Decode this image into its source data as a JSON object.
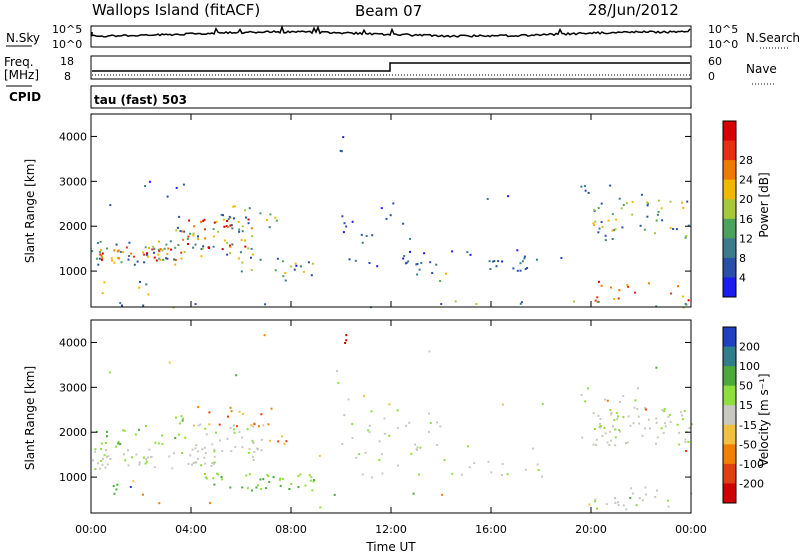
{
  "header": {
    "station": "Wallops Island (fitACF)",
    "beam": "Beam 07",
    "date": "28/Jun/2012"
  },
  "top_panels": {
    "nsky_label": "N.Sky",
    "nsky_ticks": [
      "10^5",
      "10^0"
    ],
    "nsearch_label": "N.Search",
    "nsearch_ticks": [
      "10^5",
      "10^0"
    ],
    "freq_label_1": "Freq.",
    "freq_label_2": "[MHz]",
    "freq_ticks": [
      "18",
      "8"
    ],
    "nave_label": "Nave",
    "nave_ticks": [
      "60",
      "0"
    ],
    "cpid_label": "CPID",
    "cpid_value": "tau (fast) 503"
  },
  "chart_data": [
    {
      "type": "heatmap",
      "name": "power",
      "ylabel": "Slant Range [km]",
      "y_ticks": [
        "1000",
        "2000",
        "3000",
        "4000"
      ],
      "ylim": [
        200,
        4500
      ],
      "xlim_hours": [
        0,
        24
      ],
      "colorbar": {
        "label": "Power [dB]",
        "ticks": [
          "4",
          "8",
          "12",
          "16",
          "20",
          "24",
          "28"
        ],
        "colors": [
          "#1c1cf0",
          "#2a4fa8",
          "#3c7c8a",
          "#4aa35c",
          "#a8c83c",
          "#f0b800",
          "#f07a00",
          "#e83010",
          "#d80000"
        ]
      }
    },
    {
      "type": "heatmap",
      "name": "velocity",
      "ylabel": "Slant Range [km]",
      "y_ticks": [
        "1000",
        "2000",
        "3000",
        "4000"
      ],
      "ylim": [
        200,
        4500
      ],
      "xlim_hours": [
        0,
        24
      ],
      "colorbar": {
        "label": "Velocity [m s⁻¹]",
        "ticks": [
          "200",
          "100",
          "50",
          "15",
          "-15",
          "-50",
          "-100",
          "-200"
        ],
        "colors": [
          "#2040c0",
          "#2e7e8c",
          "#4aaa3a",
          "#8ede3c",
          "#c8c8c0",
          "#f0c040",
          "#f08000",
          "#e04010",
          "#d00000"
        ]
      }
    }
  ],
  "x_ticks": [
    "00:00",
    "04:00",
    "08:00",
    "12:00",
    "16:00",
    "20:00",
    "00:00"
  ],
  "xlabel": "Time UT"
}
